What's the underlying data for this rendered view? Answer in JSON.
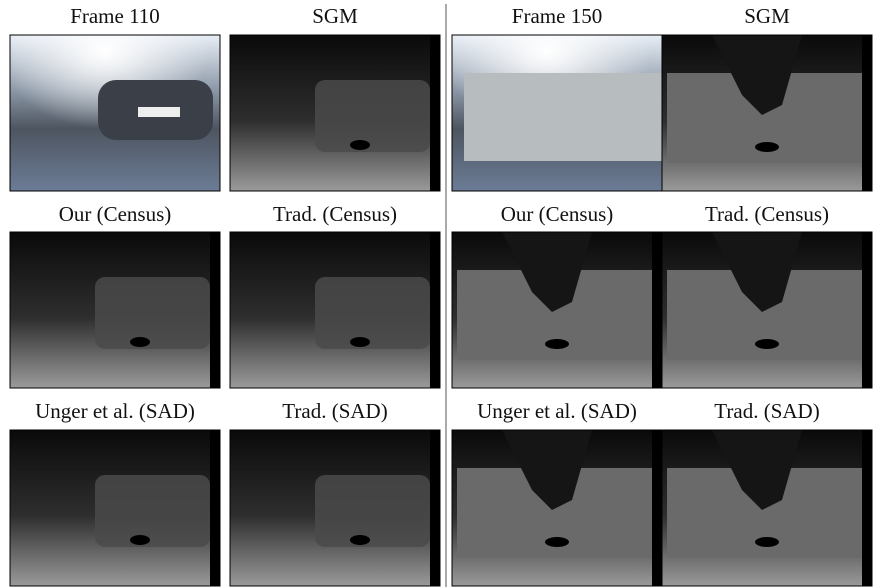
{
  "groups": [
    {
      "panels": [
        "Frame 110",
        "SGM",
        "Our (Census)",
        "Trad. (Census)",
        "Unger et al. (SAD)",
        "Trad. (SAD)"
      ]
    },
    {
      "panels": [
        "Frame 150",
        "SGM",
        "Our (Census)",
        "Trad. (Census)",
        "Unger et al. (SAD)",
        "Trad. (SAD)"
      ]
    }
  ]
}
